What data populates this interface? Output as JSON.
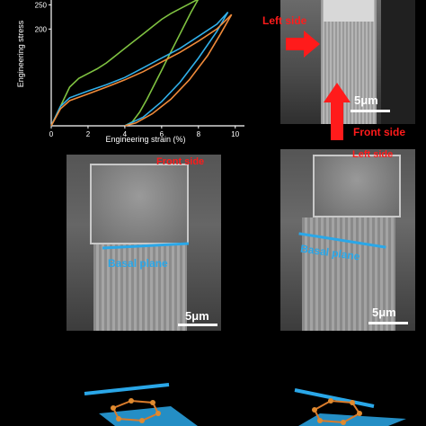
{
  "chart_data": {
    "type": "line",
    "xlabel": "Engineering strain (%)",
    "ylabel": "Engineering stress",
    "xlim": [
      0,
      10.5
    ],
    "ylim": [
      0,
      260
    ],
    "x_ticks": [
      "0",
      "2",
      "4",
      "6",
      "8",
      "10"
    ],
    "y_ticks": [
      "250",
      "200"
    ],
    "grid": false,
    "series": [
      {
        "color": "#7fc241",
        "x": [
          0,
          0.5,
          1.0,
          1.5,
          2.0,
          2.5,
          3.0,
          3.5,
          4.0,
          4.5,
          5.0,
          5.5,
          6.0,
          6.5,
          7.0,
          7.5,
          8.0
        ],
        "y": [
          0,
          40,
          80,
          98,
          108,
          118,
          130,
          145,
          160,
          175,
          190,
          205,
          220,
          232,
          242,
          252,
          262
        ]
      },
      {
        "color": "#7fc241",
        "x": [
          8.0,
          7.6,
          7.2,
          6.8,
          6.4,
          6.0,
          5.6,
          5.2,
          4.8,
          4.4,
          4.0
        ],
        "y": [
          262,
          235,
          205,
          175,
          145,
          115,
          85,
          55,
          28,
          8,
          0
        ]
      },
      {
        "color": "#31b0ea",
        "x": [
          0,
          0.5,
          1.0,
          2.0,
          3.0,
          4.0,
          5.0,
          6.0,
          7.0,
          8.0,
          9.0,
          9.6
        ],
        "y": [
          0,
          40,
          58,
          72,
          85,
          100,
          120,
          140,
          160,
          185,
          210,
          235
        ]
      },
      {
        "color": "#31b0ea",
        "x": [
          9.6,
          9.0,
          8.0,
          7.0,
          6.0,
          5.0,
          4.0
        ],
        "y": [
          235,
          195,
          140,
          90,
          50,
          18,
          0
        ]
      },
      {
        "color": "#ef8a3a",
        "x": [
          0,
          0.5,
          1.0,
          2.0,
          3.0,
          4.0,
          5.0,
          6.0,
          7.0,
          8.0,
          9.0,
          9.8
        ],
        "y": [
          0,
          35,
          52,
          66,
          80,
          95,
          112,
          132,
          152,
          175,
          200,
          230
        ]
      },
      {
        "color": "#ef8a3a",
        "x": [
          9.8,
          9.2,
          8.5,
          7.5,
          6.5,
          5.5,
          4.6,
          4.0
        ],
        "y": [
          230,
          190,
          145,
          95,
          55,
          25,
          6,
          0
        ]
      }
    ]
  },
  "panel_top_right": {
    "left_side": "Left side",
    "front_side": "Front side",
    "scale": "5μm"
  },
  "panel_mid_left": {
    "front_side": "Front side",
    "basal_plane": "Basal plane",
    "scale": "5μm"
  },
  "panel_mid_right": {
    "left_side": "Left side",
    "basal_plane": "Basal plane",
    "scale": "5μm"
  },
  "colors": {
    "annotation_red": "#ff1b1b",
    "basal_blue": "#2aa7e8"
  }
}
